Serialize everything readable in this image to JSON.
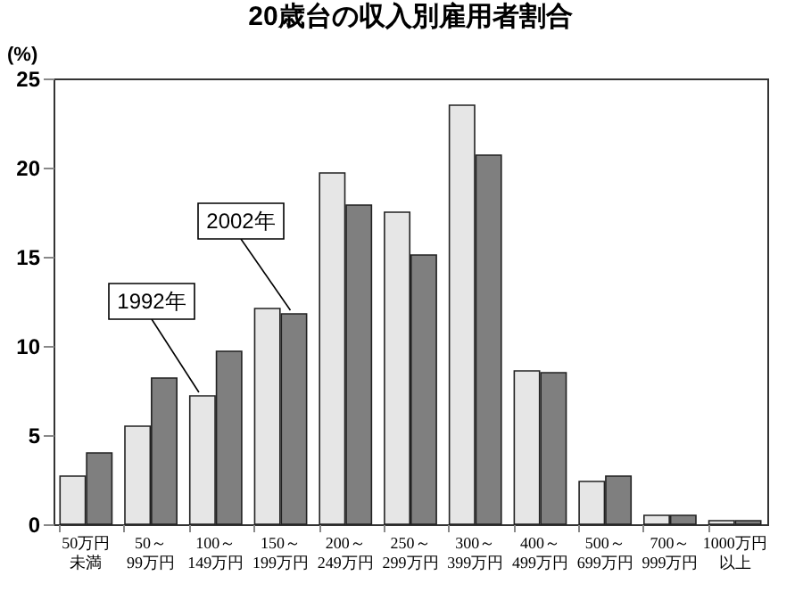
{
  "chart_data": {
    "type": "bar",
    "title": "20歳台の収入別雇用者割合",
    "ylabel": "(%)",
    "categories": [
      "50万円未満",
      "50～99万円",
      "100～149万円",
      "150～199万円",
      "200～249万円",
      "250～299万円",
      "300～399万円",
      "400～499万円",
      "500～699万円",
      "700～999万円",
      "1000万円以上"
    ],
    "series": [
      {
        "name": "1992年",
        "color": "#e6e6e6",
        "values": [
          2.7,
          5.5,
          7.2,
          12.1,
          19.7,
          17.5,
          23.5,
          8.6,
          2.4,
          0.5,
          0.2
        ]
      },
      {
        "name": "2002年",
        "color": "#7f7f7f",
        "values": [
          4.0,
          8.2,
          9.7,
          11.8,
          17.9,
          15.1,
          20.7,
          8.5,
          2.7,
          0.5,
          0.2
        ]
      }
    ],
    "ylim": [
      0,
      25
    ],
    "yticks": [
      0,
      5,
      10,
      15,
      20,
      25
    ],
    "grid": false,
    "legend": false
  }
}
